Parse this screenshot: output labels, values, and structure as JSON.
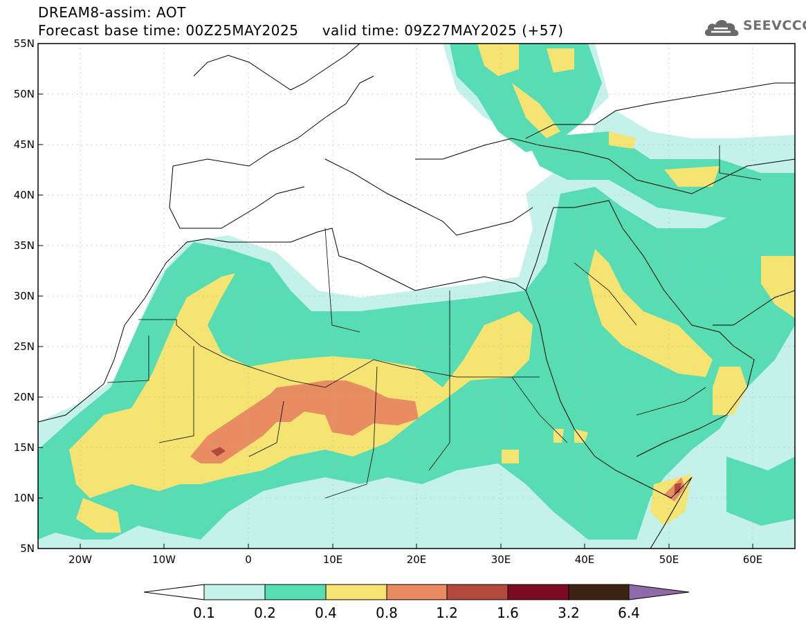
{
  "header": {
    "title_line1": "DREAM8-assim: AOT",
    "base_label": "Forecast base time:",
    "base_time": "00Z25MAY2025",
    "valid_label": "valid time:",
    "valid_time": "09Z27MAY2025 (+57)"
  },
  "logo": {
    "text": "SEEVCCC",
    "icon": "cloud-icon"
  },
  "map": {
    "lon_range": [
      -25,
      65
    ],
    "lat_range": [
      5,
      55
    ],
    "lat_ticks": [
      "5N",
      "10N",
      "15N",
      "20N",
      "25N",
      "30N",
      "35N",
      "40N",
      "45N",
      "50N",
      "55N"
    ],
    "lon_ticks": [
      "20W",
      "10W",
      "0",
      "10E",
      "20E",
      "30E",
      "40E",
      "50E",
      "60E"
    ]
  },
  "colorbar": {
    "labels": [
      "0.1",
      "0.2",
      "0.4",
      "0.8",
      "1.2",
      "1.6",
      "3.2",
      "6.4"
    ],
    "colors": [
      "#c4f2eb",
      "#57dcb4",
      "#f5e372",
      "#e88d62",
      "#b24a3c",
      "#7b0a22",
      "#3d2412",
      "#8e6aa8"
    ],
    "under_color": "#ffffff"
  }
}
